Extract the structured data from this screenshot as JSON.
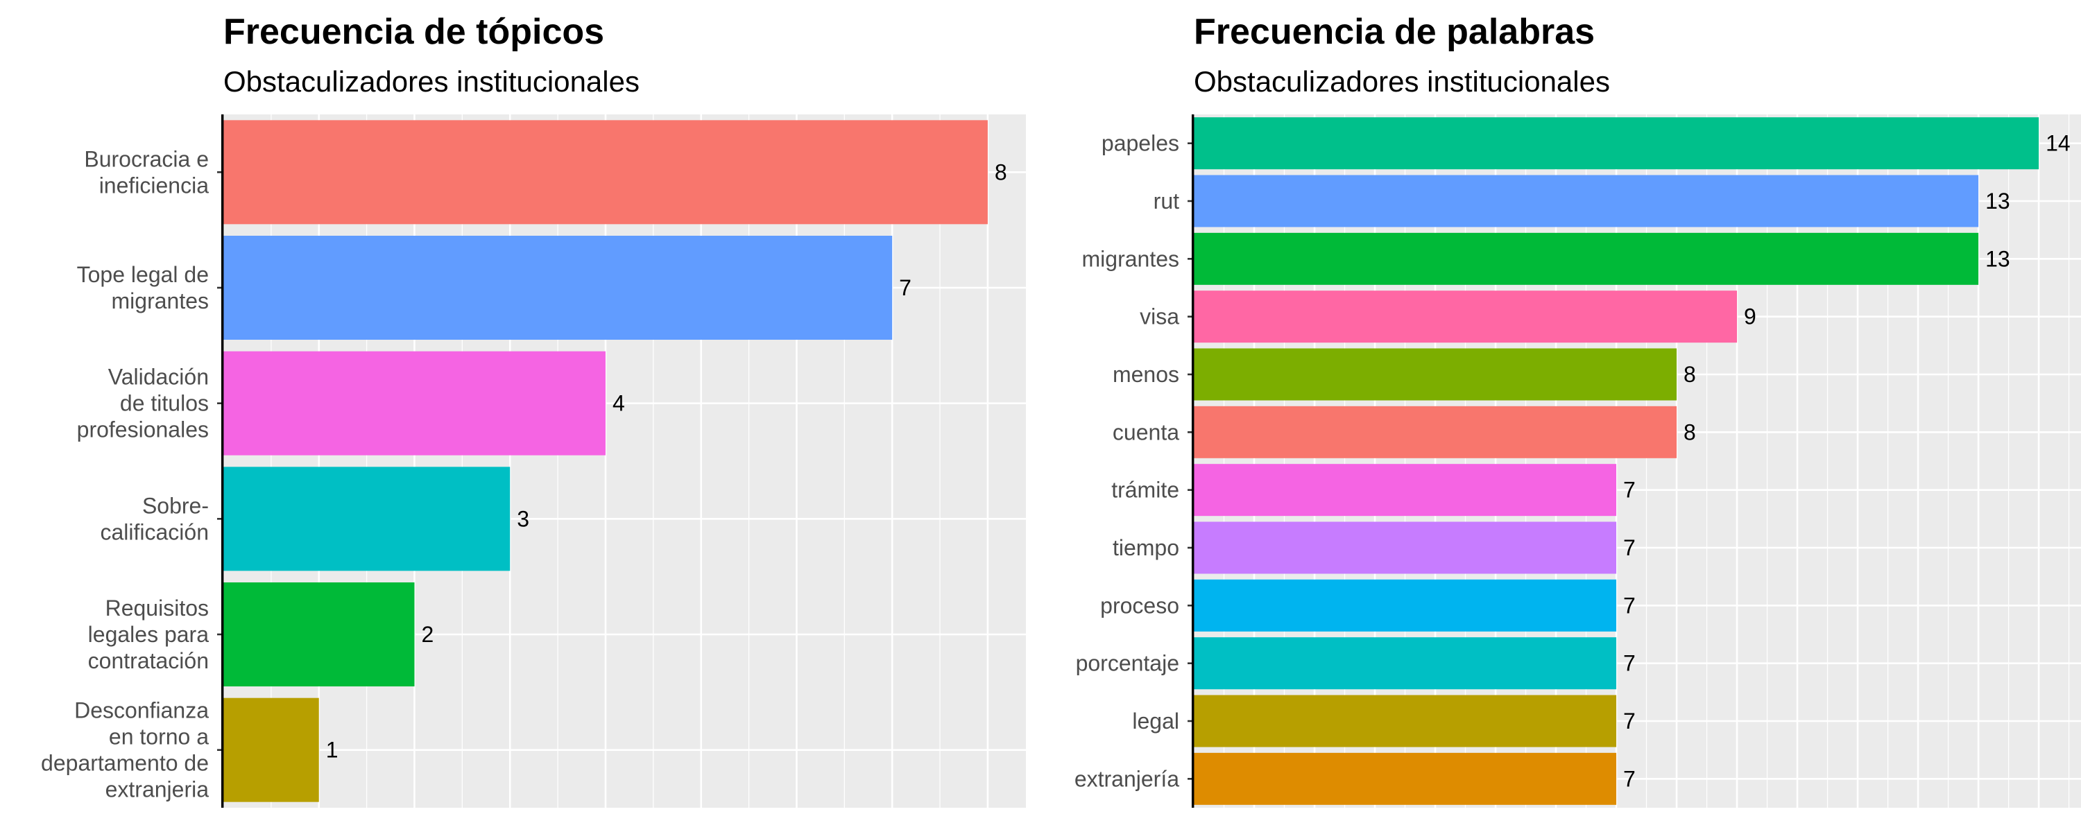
{
  "chart_data": [
    {
      "type": "bar",
      "orientation": "horizontal",
      "title": "Frecuencia de tópicos",
      "subtitle": "Obstaculizadores institucionales",
      "categories": [
        "Burocracia e ineficiencia",
        "Tope legal de migrantes",
        "Validación de titulos profesionales",
        "Sobre-calificación",
        "Requisitos legales para contratación",
        "Desconfianza en torno a departamento de extranjeria"
      ],
      "category_lines": [
        [
          "Burocracia e",
          "ineficiencia"
        ],
        [
          "Tope legal de",
          "migrantes"
        ],
        [
          "Validación",
          "de titulos",
          "profesionales"
        ],
        [
          "Sobre-",
          "calificación"
        ],
        [
          "Requisitos",
          "legales para",
          "contratación"
        ],
        [
          "Desconfianza",
          "en torno a",
          "departamento de",
          "extranjeria"
        ]
      ],
      "values": [
        8,
        7,
        4,
        3,
        2,
        1
      ],
      "colors": [
        "#F8766D",
        "#619CFF",
        "#F564E3",
        "#00BFC4",
        "#00BA38",
        "#B79F00"
      ],
      "xlim": [
        0,
        8.4
      ],
      "x_ticks_hidden": true,
      "grid": true,
      "legend": "none",
      "xlabel": "",
      "ylabel": ""
    },
    {
      "type": "bar",
      "orientation": "horizontal",
      "title": "Frecuencia de palabras",
      "subtitle": "Obstaculizadores institucionales",
      "categories": [
        "papeles",
        "rut",
        "migrantes",
        "visa",
        "menos",
        "cuenta",
        "trámite",
        "tiempo",
        "proceso",
        "porcentaje",
        "legal",
        "extranjería"
      ],
      "values": [
        14,
        13,
        13,
        9,
        8,
        8,
        7,
        7,
        7,
        7,
        7,
        7
      ],
      "colors": [
        "#00C08B",
        "#619CFF",
        "#00BA38",
        "#FF67A4",
        "#7CAE00",
        "#F8766D",
        "#F564E3",
        "#C77CFF",
        "#00B4EF",
        "#00BFC4",
        "#B79F00",
        "#DE8C00"
      ],
      "xlim": [
        0,
        14.7
      ],
      "x_ticks_hidden": true,
      "grid": true,
      "legend": "none",
      "xlabel": "",
      "ylabel": ""
    }
  ]
}
